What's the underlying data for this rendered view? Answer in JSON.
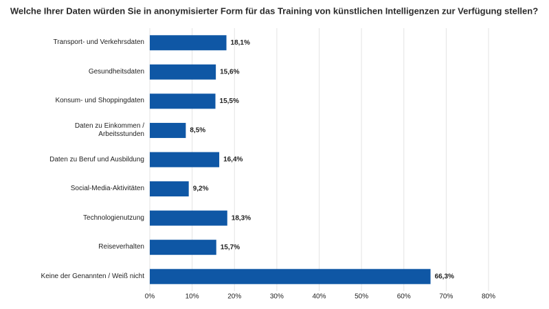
{
  "chart_data": {
    "type": "bar",
    "orientation": "horizontal",
    "title": "Welche Ihrer Daten würden Sie in anonymisierter Form für das Training von künstlichen Intelligenzen zur Verfügung stellen?",
    "categories": [
      "Transport- und Verkehrsdaten",
      "Gesundheitsdaten",
      "Konsum- und Shoppingdaten",
      "Daten zu Einkommen / Arbeitsstunden",
      "Daten zu Beruf und Ausbildung",
      "Social-Media-Aktivitäten",
      "Technologienutzung",
      "Reiseverhalten",
      "Keine der Genannten / Weiß nicht"
    ],
    "values": [
      18.1,
      15.6,
      15.5,
      8.5,
      16.4,
      9.2,
      18.3,
      15.7,
      66.3
    ],
    "value_labels": [
      "18,1%",
      "15,6%",
      "15,5%",
      "8,5%",
      "16,4%",
      "9,2%",
      "18,3%",
      "15,7%",
      "66,3%"
    ],
    "color": "#0f57a5",
    "xlim": [
      0,
      80
    ],
    "xticks": [
      {
        "value": 0,
        "label": "0%"
      },
      {
        "value": 10,
        "label": "10%"
      },
      {
        "value": 20,
        "label": "20%"
      },
      {
        "value": 30,
        "label": "30%"
      },
      {
        "value": 40,
        "label": "40%"
      },
      {
        "value": 50,
        "label": "50%"
      },
      {
        "value": 60,
        "label": "60%"
      },
      {
        "value": 70,
        "label": "70%"
      },
      {
        "value": 80,
        "label": "80%"
      }
    ],
    "grid": true
  }
}
